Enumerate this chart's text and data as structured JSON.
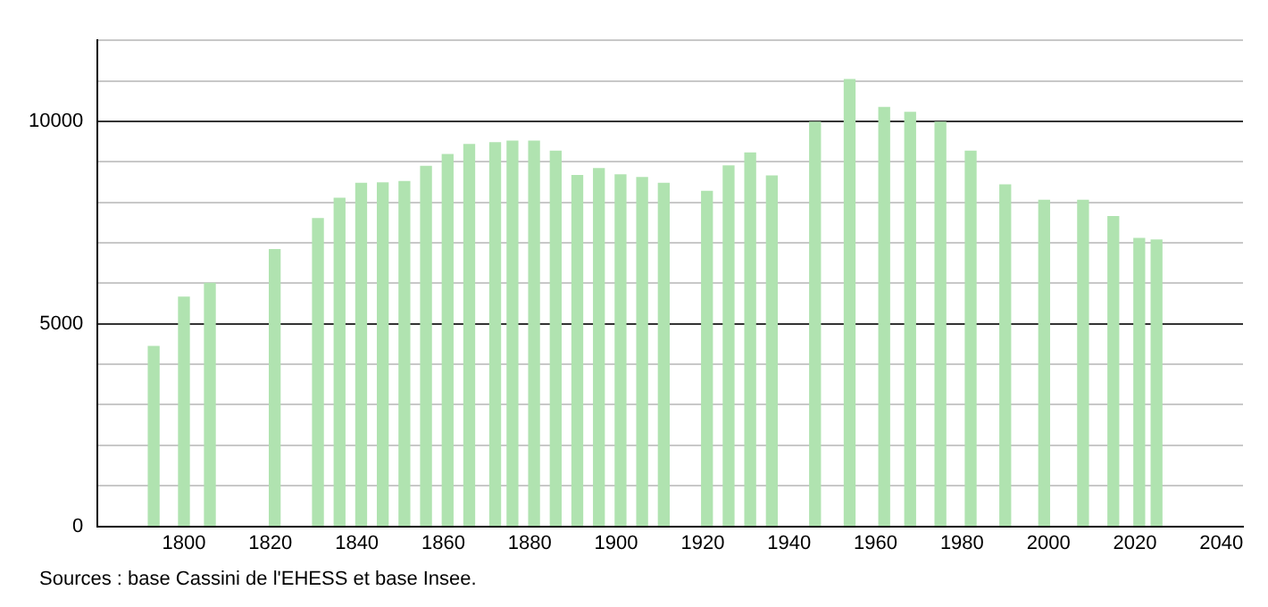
{
  "chart_data": {
    "type": "bar",
    "x": [
      1793,
      1800,
      1806,
      1821,
      1831,
      1836,
      1841,
      1846,
      1851,
      1856,
      1861,
      1866,
      1872,
      1876,
      1881,
      1886,
      1891,
      1896,
      1901,
      1906,
      1911,
      1921,
      1926,
      1931,
      1936,
      1946,
      1954,
      1962,
      1968,
      1975,
      1982,
      1990,
      1999,
      2008,
      2015,
      2021,
      2025
    ],
    "values": [
      4440,
      5660,
      6000,
      6830,
      7600,
      8100,
      8470,
      8480,
      8510,
      8890,
      9180,
      9430,
      9470,
      9510,
      9510,
      9260,
      8660,
      8830,
      8680,
      8610,
      8470,
      8270,
      8900,
      9220,
      8650,
      9980,
      11030,
      10340,
      10220,
      9980,
      9260,
      8430,
      8050,
      8050,
      7650,
      7110,
      7070
    ],
    "color": "#b0e3b0",
    "xlim": [
      1780,
      2045
    ],
    "xticks": [
      1800,
      1820,
      1840,
      1860,
      1880,
      1900,
      1920,
      1940,
      1960,
      1980,
      2000,
      2020,
      2040
    ],
    "ylim": [
      0,
      12000
    ],
    "yticks": [
      0,
      {
        "value": 1000,
        "label": null
      },
      {
        "value": 2000,
        "label": null
      },
      {
        "value": 3000,
        "label": null
      },
      {
        "value": 4000,
        "label": null
      },
      5000,
      {
        "value": 6000,
        "label": null
      },
      {
        "value": 7000,
        "label": null
      },
      {
        "value": 8000,
        "label": null
      },
      {
        "value": 9000,
        "label": null
      },
      10000,
      {
        "value": 11000,
        "label": null
      },
      {
        "value": 12000,
        "label": null
      }
    ],
    "grid": "y",
    "annotations": [
      "Sources : base Cassini de l'EHESS et base Insee."
    ]
  }
}
